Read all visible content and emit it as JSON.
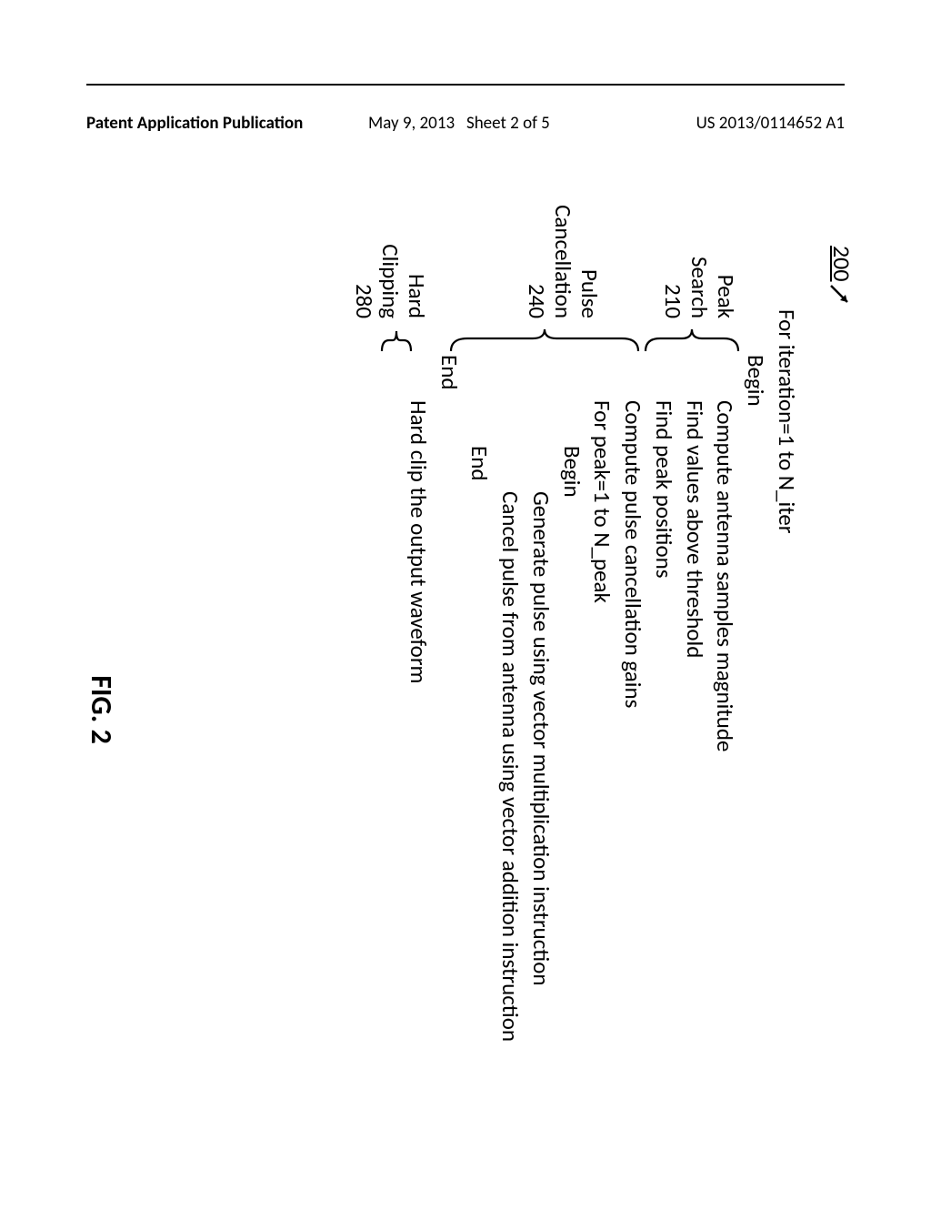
{
  "header": {
    "left": "Patent Application Publication",
    "date": "May 9, 2013",
    "sheet": "Sheet 2 of 5",
    "pubno": "US 2013/0114652 A1"
  },
  "refnum": "200",
  "labels": {
    "peak_search": "Peak\nSearch\n210",
    "pulse_cancel": "Pulse\nCancellation\n240",
    "hard_clip": "Hard\nClipping\n280"
  },
  "pseudocode": {
    "for_iter": "For iteration=1 to N_iter",
    "begin1": "Begin",
    "compute_mag": "Compute antenna samples magnitude",
    "find_above": "Find values above threshold",
    "find_peak_pos": "Find peak positions",
    "compute_gains": "Compute pulse cancellation gains",
    "for_peak": "For peak=1 to N_peak",
    "begin2": "Begin",
    "gen_pulse": "Generate pulse using vector multiplication instruction",
    "cancel_pulse": "Cancel pulse from antenna using vector addition instruction",
    "end2": "End",
    "end1": "End",
    "hard_clip_out": "Hard clip the output waveform"
  },
  "figure_caption": "FIG. 2",
  "colors": {
    "text": "#000000",
    "background": "#ffffff",
    "rule": "#000000"
  },
  "fontsizes": {
    "header": 19,
    "body": 25,
    "caption": 32,
    "refnum": 26
  }
}
